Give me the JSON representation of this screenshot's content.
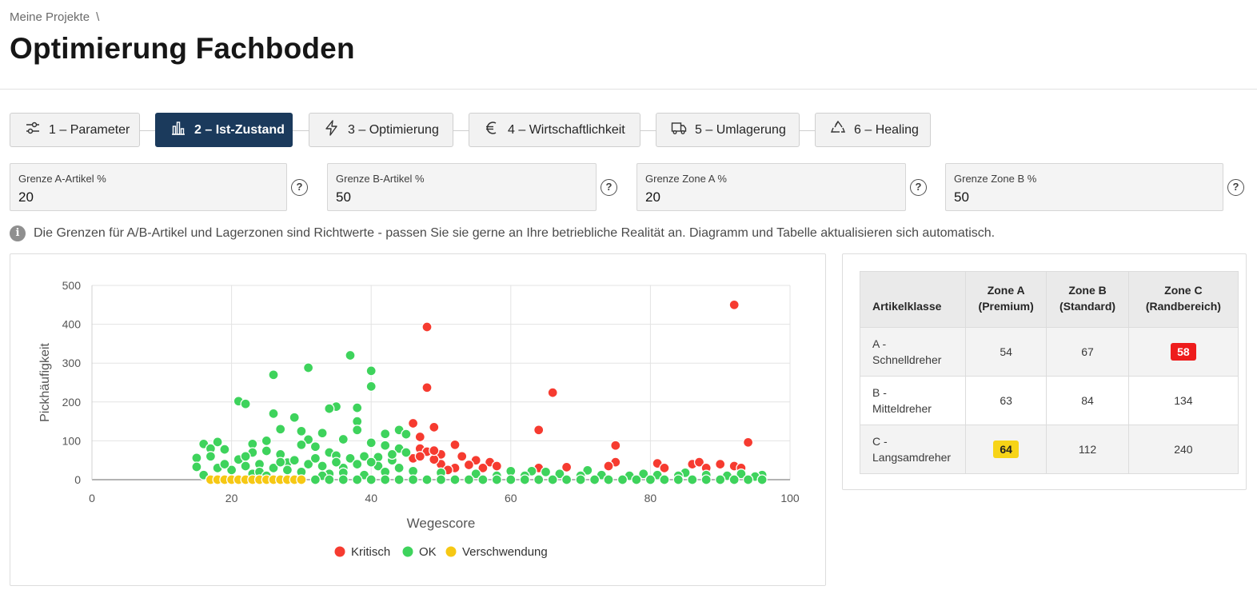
{
  "breadcrumb": {
    "root": "Meine Projekte",
    "separator": "\\"
  },
  "page_title": "Optimierung Fachboden",
  "wizard": {
    "steps": [
      {
        "label": "1 – Parameter",
        "icon": "sliders-icon",
        "active": false
      },
      {
        "label": "2 – Ist-Zustand",
        "icon": "bar-chart-icon",
        "active": true
      },
      {
        "label": "3 – Optimierung",
        "icon": "lightning-icon",
        "active": false
      },
      {
        "label": "4 – Wirtschaftlichkeit",
        "icon": "euro-icon",
        "active": false
      },
      {
        "label": "5 – Umlagerung",
        "icon": "truck-icon",
        "active": false
      },
      {
        "label": "6 – Healing",
        "icon": "recycle-icon",
        "active": false
      }
    ],
    "active_color": "#1b3a5c"
  },
  "fields": [
    {
      "label": "Grenze A-Artikel %",
      "value": "20"
    },
    {
      "label": "Grenze B-Artikel %",
      "value": "50"
    },
    {
      "label": "Grenze Zone A %",
      "value": "20"
    },
    {
      "label": "Grenze Zone B %",
      "value": "50"
    }
  ],
  "help_symbol": "?",
  "info": {
    "icon": "info-icon",
    "text": "Die Grenzen für A/B-Artikel und Lagerzonen sind Richtwerte - passen Sie sie gerne an Ihre betriebliche Realität an. Diagramm und Tabelle aktualisieren sich automatisch."
  },
  "table": {
    "headers": [
      {
        "line1": "Artikelklasse",
        "line2": ""
      },
      {
        "line1": "Zone A",
        "line2": "(Premium)"
      },
      {
        "line1": "Zone B",
        "line2": "(Standard)"
      },
      {
        "line1": "Zone C",
        "line2": "(Randbereich)"
      }
    ],
    "rows": [
      {
        "line1": "A -",
        "line2": "Schnelldreher",
        "values": [
          "54",
          "67",
          "58"
        ],
        "badges": [
          null,
          null,
          "red"
        ]
      },
      {
        "line1": "B -",
        "line2": "Mitteldreher",
        "values": [
          "63",
          "84",
          "134"
        ],
        "badges": [
          null,
          null,
          null
        ]
      },
      {
        "line1": "C -",
        "line2": "Langsamdreher",
        "values": [
          "64",
          "112",
          "240"
        ],
        "badges": [
          "yellow",
          null,
          null
        ]
      }
    ],
    "badge_colors": {
      "red": "#ee1c1c",
      "yellow": "#f7d417"
    }
  },
  "chart_data": {
    "type": "scatter",
    "xlabel": "Wegescore",
    "ylabel": "Pickhäufigkeit",
    "xlim": [
      0,
      100
    ],
    "ylim": [
      0,
      500
    ],
    "xticks": [
      0,
      20,
      40,
      60,
      80,
      100
    ],
    "yticks": [
      0,
      100,
      200,
      300,
      400,
      500
    ],
    "grid": true,
    "legend_position": "bottom-center",
    "series": [
      {
        "name": "Kritisch",
        "color": "#f63b30",
        "points": [
          [
            92,
            450
          ],
          [
            48,
            393
          ],
          [
            48,
            237
          ],
          [
            66,
            224
          ],
          [
            64,
            128
          ],
          [
            46,
            145
          ],
          [
            49,
            135
          ],
          [
            47,
            110
          ],
          [
            52,
            90
          ],
          [
            75,
            88
          ],
          [
            94,
            96
          ],
          [
            47,
            80
          ],
          [
            48,
            72
          ],
          [
            50,
            65
          ],
          [
            53,
            60
          ],
          [
            55,
            50
          ],
          [
            57,
            45
          ],
          [
            58,
            35
          ],
          [
            50,
            40
          ],
          [
            46,
            55
          ],
          [
            52,
            30
          ],
          [
            49,
            52
          ],
          [
            64,
            30
          ],
          [
            68,
            32
          ],
          [
            75,
            45
          ],
          [
            74,
            35
          ],
          [
            81,
            42
          ],
          [
            86,
            40
          ],
          [
            87,
            45
          ],
          [
            88,
            30
          ],
          [
            90,
            40
          ],
          [
            92,
            35
          ],
          [
            93,
            30
          ],
          [
            82,
            30
          ],
          [
            56,
            30
          ],
          [
            51,
            25
          ],
          [
            54,
            38
          ],
          [
            47,
            60
          ],
          [
            49,
            75
          ]
        ]
      },
      {
        "name": "OK",
        "color": "#3ed35c",
        "points": [
          [
            37,
            320
          ],
          [
            40,
            280
          ],
          [
            31,
            288
          ],
          [
            26,
            270
          ],
          [
            40,
            240
          ],
          [
            21,
            202
          ],
          [
            22,
            195
          ],
          [
            35,
            188
          ],
          [
            34,
            183
          ],
          [
            38,
            185
          ],
          [
            26,
            170
          ],
          [
            29,
            160
          ],
          [
            38,
            150
          ],
          [
            42,
            118
          ],
          [
            27,
            130
          ],
          [
            30,
            125
          ],
          [
            38,
            128
          ],
          [
            33,
            120
          ],
          [
            44,
            128
          ],
          [
            45,
            117
          ],
          [
            31,
            103
          ],
          [
            36,
            104
          ],
          [
            40,
            95
          ],
          [
            30,
            90
          ],
          [
            25,
            100
          ],
          [
            32,
            85
          ],
          [
            16,
            92
          ],
          [
            17,
            80
          ],
          [
            18,
            97
          ],
          [
            19,
            78
          ],
          [
            23,
            92
          ],
          [
            15,
            56
          ],
          [
            17,
            60
          ],
          [
            23,
            70
          ],
          [
            25,
            74
          ],
          [
            27,
            65
          ],
          [
            34,
            70
          ],
          [
            35,
            62
          ],
          [
            37,
            55
          ],
          [
            39,
            60
          ],
          [
            41,
            58
          ],
          [
            42,
            88
          ],
          [
            44,
            80
          ],
          [
            45,
            70
          ],
          [
            43,
            50
          ],
          [
            21,
            52
          ],
          [
            15,
            33
          ],
          [
            22,
            35
          ],
          [
            24,
            40
          ],
          [
            28,
            44
          ],
          [
            33,
            35
          ],
          [
            36,
            30
          ],
          [
            38,
            40
          ],
          [
            41,
            35
          ],
          [
            16,
            12
          ],
          [
            20,
            25
          ],
          [
            26,
            30
          ],
          [
            31,
            40
          ],
          [
            42,
            20
          ],
          [
            44,
            30
          ],
          [
            60,
            22
          ],
          [
            63,
            22
          ],
          [
            65,
            20
          ],
          [
            71,
            24
          ],
          [
            85,
            18
          ],
          [
            96,
            12
          ],
          [
            30,
            20
          ],
          [
            34,
            15
          ],
          [
            39,
            12
          ],
          [
            18,
            30
          ],
          [
            23,
            15
          ],
          [
            28,
            25
          ],
          [
            33,
            10
          ],
          [
            36,
            18
          ],
          [
            46,
            22
          ],
          [
            50,
            18
          ],
          [
            55,
            15
          ],
          [
            58,
            10
          ],
          [
            62,
            10
          ],
          [
            67,
            15
          ],
          [
            70,
            10
          ],
          [
            73,
            12
          ],
          [
            77,
            10
          ],
          [
            79,
            15
          ],
          [
            81,
            12
          ],
          [
            84,
            10
          ],
          [
            88,
            12
          ],
          [
            91,
            10
          ],
          [
            93,
            15
          ],
          [
            95,
            8
          ],
          [
            29,
            50
          ],
          [
            32,
            55
          ],
          [
            22,
            60
          ],
          [
            24,
            20
          ],
          [
            40,
            45
          ],
          [
            43,
            65
          ],
          [
            19,
            40
          ],
          [
            25,
            10
          ],
          [
            27,
            45
          ],
          [
            35,
            45
          ],
          [
            17,
            0
          ],
          [
            19,
            0
          ],
          [
            22,
            0
          ],
          [
            24,
            0
          ],
          [
            26,
            0
          ],
          [
            28,
            0
          ],
          [
            30,
            0
          ],
          [
            32,
            0
          ],
          [
            34,
            0
          ],
          [
            36,
            0
          ],
          [
            38,
            0
          ],
          [
            40,
            0
          ],
          [
            42,
            0
          ],
          [
            44,
            0
          ],
          [
            46,
            0
          ],
          [
            48,
            0
          ],
          [
            50,
            0
          ],
          [
            52,
            0
          ],
          [
            54,
            0
          ],
          [
            56,
            0
          ],
          [
            58,
            0
          ],
          [
            60,
            0
          ],
          [
            62,
            0
          ],
          [
            64,
            0
          ],
          [
            66,
            0
          ],
          [
            68,
            0
          ],
          [
            70,
            0
          ],
          [
            72,
            0
          ],
          [
            74,
            0
          ],
          [
            76,
            0
          ],
          [
            78,
            0
          ],
          [
            80,
            0
          ],
          [
            82,
            0
          ],
          [
            84,
            0
          ],
          [
            86,
            0
          ],
          [
            88,
            0
          ],
          [
            90,
            0
          ],
          [
            92,
            0
          ],
          [
            94,
            0
          ],
          [
            96,
            0
          ]
        ]
      },
      {
        "name": "Verschwendung",
        "color": "#f6c814",
        "points": [
          [
            17,
            0
          ],
          [
            18,
            0
          ],
          [
            19,
            0
          ],
          [
            20,
            0
          ],
          [
            21,
            0
          ],
          [
            22,
            0
          ],
          [
            23,
            0
          ],
          [
            24,
            0
          ],
          [
            25,
            0
          ],
          [
            26,
            0
          ],
          [
            27,
            0
          ],
          [
            28,
            0
          ],
          [
            29,
            0
          ],
          [
            30,
            0
          ]
        ]
      }
    ]
  }
}
